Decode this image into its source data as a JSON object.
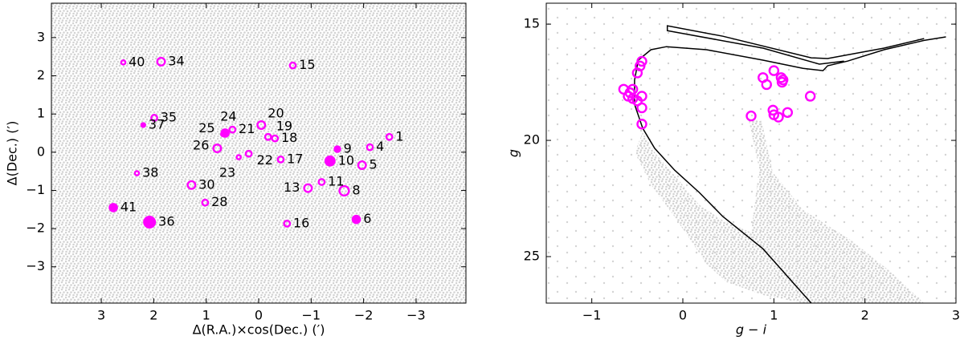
{
  "chart_data": [
    {
      "type": "scatter",
      "xlabel": "Δ(R.A.)×cos(Dec.) (′)",
      "ylabel": "Δ(Dec.) (′)",
      "xlim": [
        3.95,
        -3.95
      ],
      "ylim": [
        -3.95,
        3.9
      ],
      "xticks": [
        3,
        2,
        1,
        0,
        {
          "value": -1,
          "label": "−1"
        },
        {
          "value": -2,
          "label": "−2"
        },
        {
          "value": -3,
          "label": "−3"
        }
      ],
      "yticks": [
        {
          "value": -3,
          "label": "−3"
        },
        {
          "value": -2,
          "label": "−2"
        },
        {
          "value": -1,
          "label": "−1"
        },
        0,
        1,
        2,
        3
      ],
      "labels": [
        "1",
        "4",
        "5",
        "6",
        "8",
        "9",
        "10",
        "11",
        "13",
        "15",
        "16",
        "17",
        "18",
        "19",
        "20",
        "21",
        "22",
        "23",
        "24",
        "25",
        "26",
        "28",
        "30",
        "34",
        "35",
        "36",
        "37",
        "38",
        "40",
        "41"
      ],
      "x": [
        -2.49,
        -2.12,
        -1.97,
        -1.86,
        -1.63,
        -1.5,
        -1.36,
        -1.2,
        -0.94,
        -0.65,
        -0.54,
        -0.42,
        -0.31,
        -0.18,
        -0.05,
        0.5,
        0.19,
        0.38,
        0.64,
        0.68,
        0.79,
        1.02,
        1.28,
        1.86,
        1.99,
        2.08,
        2.2,
        2.32,
        2.58,
        2.77
      ],
      "y": [
        0.4,
        0.13,
        -0.34,
        -1.76,
        -1.01,
        0.08,
        -0.23,
        -0.78,
        -0.94,
        2.27,
        -1.87,
        -0.19,
        0.36,
        0.4,
        0.71,
        0.59,
        -0.04,
        -0.13,
        0.5,
        0.47,
        0.1,
        -1.32,
        -0.86,
        2.37,
        0.9,
        -1.83,
        0.71,
        -0.55,
        2.35,
        -1.45
      ],
      "sizes": [
        2,
        2,
        3,
        3,
        4,
        2,
        4,
        2,
        3,
        2,
        2,
        2,
        2,
        2,
        3,
        2,
        2,
        1,
        3,
        1,
        3,
        2,
        3,
        3,
        2,
        5,
        1,
        1,
        1,
        3
      ],
      "filled": [
        false,
        false,
        false,
        true,
        false,
        true,
        true,
        false,
        false,
        false,
        false,
        false,
        false,
        false,
        false,
        false,
        false,
        false,
        true,
        true,
        false,
        false,
        false,
        false,
        false,
        true,
        true,
        false,
        false,
        true
      ],
      "color": "#ff00ff",
      "field_color": "#d3d3d3"
    },
    {
      "type": "scatter",
      "xlabel": "g − i",
      "ylabel": "g",
      "xlim": [
        -1.5,
        3.0
      ],
      "ylim": [
        27.0,
        14.1
      ],
      "xticks": [
        {
          "value": -1,
          "label": "−1"
        },
        0,
        1,
        2,
        3
      ],
      "yticks": [
        15,
        20,
        25
      ],
      "x": [
        -0.45,
        -0.47,
        -0.5,
        -0.55,
        -0.65,
        -0.6,
        -0.55,
        -0.5,
        -0.58,
        -0.45,
        -0.45,
        -0.45,
        0.88,
        0.92,
        1.0,
        1.08,
        1.09,
        1.1,
        1.4,
        0.99,
        1.0,
        1.05,
        1.15,
        0.75
      ],
      "y": [
        16.6,
        16.8,
        17.1,
        17.8,
        17.8,
        18.1,
        18.2,
        18.3,
        17.95,
        18.1,
        18.6,
        19.3,
        17.3,
        17.6,
        17.0,
        17.3,
        17.5,
        17.4,
        18.1,
        18.7,
        18.9,
        19.0,
        18.8,
        18.95
      ],
      "isochrone_x": [
        1.41,
        0.88,
        0.44,
        0.18,
        -0.09,
        -0.31,
        -0.44,
        -0.53,
        -0.53,
        -0.49,
        -0.35,
        -0.18,
        0.26,
        0.88,
        1.32,
        1.54,
        1.59,
        1.81,
        2.21,
        2.65,
        2.89,
        null,
        2.65,
        2.21,
        1.59,
        1.41,
        0.44,
        -0.17,
        -0.17,
        0.88,
        1.5,
        1.77
      ],
      "isochrone_y": [
        27.0,
        24.66,
        23.28,
        22.24,
        21.28,
        20.34,
        19.48,
        18.45,
        17.41,
        16.55,
        16.1,
        15.97,
        16.1,
        16.55,
        16.9,
        17.0,
        16.79,
        16.59,
        16.1,
        15.7,
        15.55,
        null,
        15.62,
        16.03,
        16.48,
        16.45,
        15.52,
        15.07,
        15.28,
        16.03,
        16.72,
        16.59
      ],
      "color": "#ff00ff",
      "line_color": "#000000",
      "field_color": "#d3d3d3"
    }
  ]
}
